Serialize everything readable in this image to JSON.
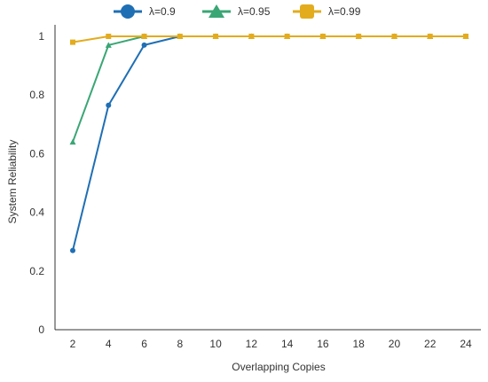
{
  "chart_data": {
    "type": "line",
    "xlabel": "Overlapping Copies",
    "ylabel": "System Reliability",
    "x": [
      2,
      4,
      6,
      8,
      10,
      12,
      14,
      16,
      18,
      20,
      22,
      24
    ],
    "xticks": [
      "2",
      "4",
      "6",
      "8",
      "10",
      "12",
      "14",
      "16",
      "18",
      "20",
      "22",
      "24"
    ],
    "yticks": [
      "0",
      "0.2",
      "0.4",
      "0.6",
      "0.8",
      "1"
    ],
    "ylim": [
      0,
      1
    ],
    "legend_position": "top",
    "grid": false,
    "series": [
      {
        "name": "λ=0.9",
        "color": "#1f6fb4",
        "marker": "circle",
        "values": [
          0.27,
          0.765,
          0.97,
          1.0,
          1.0,
          1.0,
          1.0,
          1.0,
          1.0,
          1.0,
          1.0,
          1.0
        ]
      },
      {
        "name": "λ=0.95",
        "color": "#3aa675",
        "marker": "triangle",
        "values": [
          0.64,
          0.97,
          1.0,
          1.0,
          1.0,
          1.0,
          1.0,
          1.0,
          1.0,
          1.0,
          1.0,
          1.0
        ]
      },
      {
        "name": "λ=0.99",
        "color": "#e3ac1e",
        "marker": "square",
        "values": [
          0.98,
          1.0,
          1.0,
          1.0,
          1.0,
          1.0,
          1.0,
          1.0,
          1.0,
          1.0,
          1.0,
          1.0
        ]
      }
    ]
  }
}
